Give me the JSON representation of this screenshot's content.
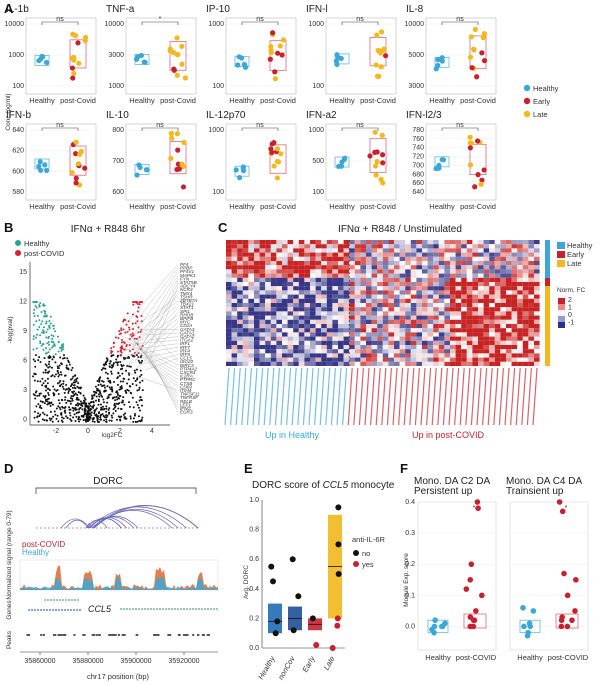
{
  "panel_labels": [
    "A",
    "B",
    "C",
    "D",
    "E",
    "F"
  ],
  "colors": {
    "healthy": "#3ba7d8",
    "early": "#c8202f",
    "late": "#f2b81c",
    "box_healthy": "#5fb9e0",
    "box_post": "#e06a7a",
    "volcano_up_healthy": "#2aa191",
    "volcano_up_covid": "#d8222f",
    "volcano_ns": "#111111"
  },
  "panelA": {
    "ylabel": "Conc.(pg/ml)",
    "xcats": [
      "Healthy",
      "post-Covid"
    ],
    "legend": [
      {
        "label": "Healthy",
        "color": "#3ba7d8"
      },
      {
        "label": "Early",
        "color": "#c8202f"
      },
      {
        "label": "Late",
        "color": "#f2b81c"
      }
    ],
    "plots": [
      {
        "title": "IL-1b",
        "sig": "ns",
        "ticks": [
          "10000",
          "1000",
          "100"
        ]
      },
      {
        "title": "TNF-a",
        "sig": "*",
        "ticks": [
          "10000",
          "3000",
          "1000"
        ]
      },
      {
        "title": "IP-10",
        "sig": "ns",
        "ticks": [
          "1000",
          "100"
        ]
      },
      {
        "title": "IFN-l",
        "sig": "ns",
        "ticks": [
          "1000",
          "100"
        ]
      },
      {
        "title": "IL-8",
        "sig": "ns",
        "ticks": [
          "10000",
          "5000",
          "3000"
        ]
      },
      {
        "title": "IFN-b",
        "sig": "ns",
        "ticks": [
          "640",
          "620",
          "600",
          "580"
        ]
      },
      {
        "title": "IL-10",
        "sig": "ns",
        "ticks": [
          "800",
          "700",
          "600"
        ]
      },
      {
        "title": "IL-12p70",
        "sig": "ns",
        "ticks": [
          "1000",
          "100"
        ]
      },
      {
        "title": "IFN-a2",
        "sig": "ns",
        "ticks": [
          "1000",
          "500",
          "100"
        ]
      },
      {
        "title": "IFN-l2/3",
        "sig": "ns",
        "ticks": [
          "780",
          "760",
          "740",
          "720",
          "700",
          "680",
          "660",
          "640"
        ]
      }
    ]
  },
  "panelB": {
    "title": "IFNα + R848 6hr",
    "legend": [
      "Healthy",
      "post-COVID"
    ],
    "xlabel": "log2FC",
    "ylabel": "-log(pval)",
    "xticks": [
      "-2",
      "0",
      "2",
      "4"
    ],
    "yticks": [
      "15",
      "12",
      "9",
      "6",
      "3",
      "0"
    ],
    "genes": [
      "PF4",
      "PPBP",
      "PF4V1",
      "MAPK1",
      "FYN",
      "STAT5B",
      "ADCY4",
      "NCR3",
      "TMX4",
      "TSHR",
      "ZBTB7A",
      "TBX21",
      "STAT1",
      "SPI1",
      "RHOB",
      "BPIFB",
      "MYC",
      "CD1A",
      "GATA3",
      "GATA1",
      "GATA2",
      "ITGA2",
      "IRF1",
      "IRF7",
      "IRF4",
      "IRF9",
      "CCL5",
      "ISG20",
      "BIRC3",
      "PTP4A2",
      "CXCR4",
      "IL2RA",
      "PTPRC",
      "CTSB",
      "CD69",
      "ITIH4",
      "TNFSF11",
      "TNFRSF",
      "RELB",
      "LEF1",
      "IFNG",
      "EGR3"
    ]
  },
  "panelC": {
    "title": "IFNα + R848 / Unstimulated",
    "legend": [
      {
        "label": "Healthy",
        "color": "#3ba7d8"
      },
      {
        "label": "Early",
        "color": "#c8202f"
      },
      {
        "label": "Late",
        "color": "#f2b81c"
      }
    ],
    "scale_title": "Norm. FC",
    "scale_ticks": [
      "2",
      "1",
      "0",
      "-1"
    ],
    "bottom_left": "Up in Healthy",
    "bottom_right": "Up in post-COVID"
  },
  "panelD": {
    "region": "DORC",
    "track_label": "Normalized signal (range 0-79)",
    "legend": [
      "post-COVID",
      "Healthy"
    ],
    "gene": "CCL5",
    "track_names": [
      "Genes",
      "Peaks"
    ],
    "xticks": [
      "35860000",
      "35880000",
      "35900000",
      "35920000"
    ],
    "xlabel": "chr17 position (bp)"
  },
  "panelE": {
    "title": "DORC score of CCL5 monocyte",
    "ylabel": "Avg. DORC",
    "yticks": [
      "1.0",
      "0.8",
      "0.6",
      "0.4",
      "0.2",
      "0.0"
    ],
    "categories": [
      "Healthy",
      "nonCov",
      "Early",
      "Late"
    ],
    "legend_title": "anti-IL-6R",
    "legend": [
      "no",
      "yes"
    ]
  },
  "panelF": {
    "ylabel": "Module Exp. score",
    "yticks": [
      "0.4",
      "0.3",
      "0.2",
      "0.1",
      "0.0"
    ],
    "plots": [
      {
        "title": "Mono. DA C2 DA Persistent up",
        "sig": "*"
      },
      {
        "title": "Mono. DA C4 DA Trainsient up",
        "sig": "*"
      }
    ],
    "xcats": [
      "Healthy",
      "post-COVID"
    ]
  },
  "chart_data": [
    {
      "type": "scatter",
      "title": "IL-1b (Healthy vs post-Covid, conc. pg/ml)",
      "categories": [
        "Healthy",
        "post-Covid"
      ],
      "series": [
        {
          "name": "Healthy",
          "values": [
            800,
            820,
            790,
            810,
            805
          ]
        },
        {
          "name": "post-Covid",
          "values": [
            600,
            900,
            1500,
            2000,
            2500,
            3000,
            1200,
            800,
            700,
            1800
          ]
        }
      ]
    },
    {
      "type": "scatter",
      "title": "DORC score of CCL5 monocyte",
      "categories": [
        "Healthy",
        "nonCov",
        "Early",
        "Late"
      ],
      "series": [
        {
          "name": "anti-IL-6R no",
          "values": [
            0.18,
            0.55,
            0.6,
            0.12,
            0.35,
            0.45,
            0.2,
            0.1,
            0.7,
            0.5,
            0.95
          ]
        },
        {
          "name": "anti-IL-6R yes",
          "values": [
            0.02,
            0.15,
            0.0,
            0.2
          ]
        }
      ]
    },
    {
      "type": "scatter",
      "title": "Module Exp. score",
      "categories": [
        "Healthy",
        "post-COVID"
      ],
      "series": [
        {
          "name": "C2 Persistent up Healthy",
          "values": [
            0.0,
            -0.02,
            0.01,
            0.0,
            -0.01,
            0.02,
            0.0
          ]
        },
        {
          "name": "C2 Persistent up post-COVID",
          "values": [
            0.0,
            0.02,
            0.05,
            0.12,
            0.38,
            0.4,
            0.1,
            0.02,
            0.0,
            0.03,
            0.15,
            0.2
          ]
        },
        {
          "name": "C4 Trainsient up Healthy",
          "values": [
            0.0,
            -0.02,
            0.05,
            0.0,
            -0.03,
            0.06,
            0.01
          ]
        },
        {
          "name": "C4 Trainsient up post-COVID",
          "values": [
            0.0,
            0.02,
            0.15,
            0.17,
            0.37,
            0.4,
            0.02,
            0.05,
            0.0,
            0.1,
            0.03
          ]
        }
      ]
    }
  ]
}
